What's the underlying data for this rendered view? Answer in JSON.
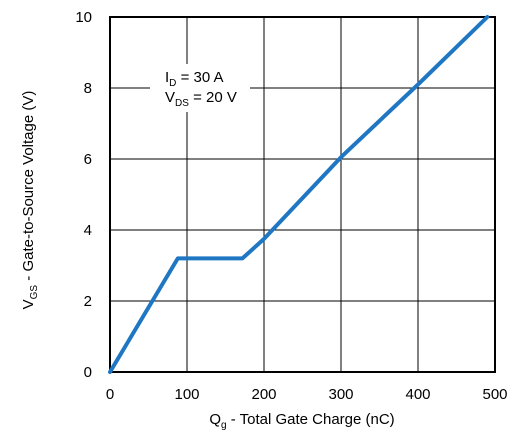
{
  "chart_data": {
    "type": "line",
    "xlabel": {
      "main": "Q",
      "sub": "g",
      "rest": " - Total Gate Charge (nC)"
    },
    "ylabel": {
      "main": "V",
      "sub": "GS",
      "rest": " - Gate-to-Source Voltage (V)"
    },
    "xlim": [
      0,
      500
    ],
    "ylim": [
      0,
      10
    ],
    "x_ticks": [
      0,
      100,
      200,
      300,
      400,
      500
    ],
    "y_ticks": [
      0,
      2,
      4,
      6,
      8,
      10
    ],
    "grid": true,
    "line_color": "#1f77c4",
    "series": [
      {
        "x": [
          0,
          88,
          172,
          200,
          300,
          400,
          490
        ],
        "y": [
          0,
          3.2,
          3.2,
          3.75,
          6.05,
          8.1,
          10
        ]
      }
    ],
    "annotation": {
      "line1": {
        "main": "I",
        "sub": "D",
        "rest": " = 30 A"
      },
      "line2": {
        "main": "V",
        "sub": "DS",
        "rest": " = 20 V"
      }
    }
  }
}
